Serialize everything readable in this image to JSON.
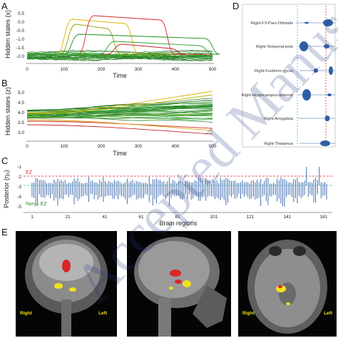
{
  "panels": {
    "A": {
      "label": "A",
      "ylabel": "Hidden states (x)",
      "xlabel": "Time",
      "yticks": [
        "0.5",
        "0.0",
        "-0.5",
        "-1.0",
        "-1.5",
        "-2.0"
      ],
      "xticks": [
        "0",
        "100",
        "200",
        "300",
        "400",
        "500"
      ]
    },
    "B": {
      "label": "B",
      "ylabel": "Hidden states (z)",
      "xlabel": "Time",
      "yticks": [
        "5.0",
        "4.5",
        "4.0",
        "3.5",
        "3.0"
      ],
      "xticks": [
        "0",
        "100",
        "200",
        "300",
        "400",
        "500"
      ]
    },
    "C": {
      "label": "C",
      "ylabel": "Posterior (η₀)",
      "xlabel": "Brain regions",
      "yticks": [
        "-1",
        "-2",
        "-3",
        "-4",
        "-5"
      ],
      "xticks": [
        "1",
        "21",
        "41",
        "61",
        "81",
        "101",
        "121",
        "141",
        "161"
      ],
      "ez_label": "EZ",
      "non_ez_label": "Non – EZ"
    },
    "D": {
      "label": "D",
      "regions": [
        "Right-F3-Pars-Orbitalis",
        "Right-Temporal-pole",
        "Right-Fusiform-gyrus",
        "Right-Hippocampus-anterior",
        "Right-Amygdala",
        "Right-Thalamus"
      ]
    },
    "E": {
      "label": "E",
      "images": [
        {
          "left": "Right",
          "right": "Left"
        },
        {
          "left": "",
          "right": ""
        },
        {
          "left": "Right",
          "right": "Left"
        }
      ]
    }
  },
  "watermark": "Accepted Manuscript",
  "colors": {
    "ez": "#d62728",
    "non_ez": "#2ca02c",
    "violin": "#2f5fa6",
    "threshold_ez": "#e03030",
    "threshold_non": "#2ec4c4",
    "highlight_yellow": "#f2e21a"
  }
}
